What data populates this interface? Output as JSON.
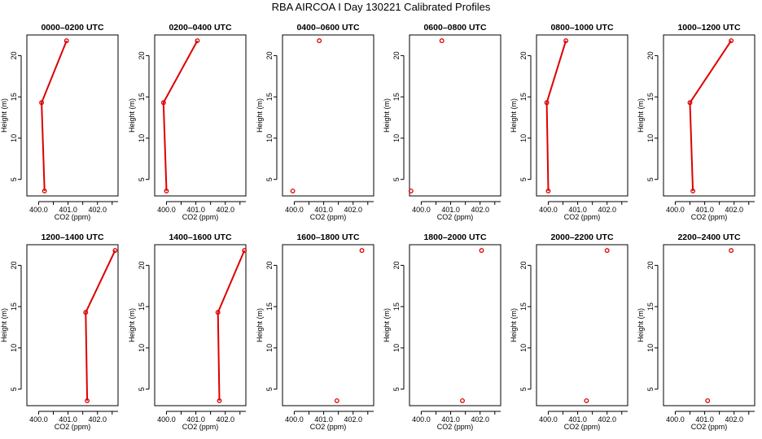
{
  "figure_title": "RBA AIRCOA I  Day 130221  Calibrated Profiles",
  "chart_data": [
    {
      "type": "line",
      "title": "0000–0200 UTC",
      "xlabel": "CO2 (ppm)",
      "ylabel": "Height (m)",
      "xlim": [
        399.6,
        402.7
      ],
      "ylim": [
        3,
        22.5
      ],
      "xticks": [
        400.0,
        401.0,
        402.0
      ],
      "xtick_labels": [
        "400.0",
        "401.0",
        "402.0"
      ],
      "yticks": [
        5,
        10,
        15,
        20
      ],
      "ytick_labels": [
        "5",
        "10",
        "15",
        "20"
      ],
      "x": [
        400.2,
        400.1,
        400.95
      ],
      "y": [
        3.6,
        14.3,
        21.8
      ],
      "connected": true
    },
    {
      "type": "line",
      "title": "0200–0400 UTC",
      "xlabel": "CO2 (ppm)",
      "ylabel": "Height (m)",
      "xlim": [
        399.6,
        402.7
      ],
      "ylim": [
        3,
        22.5
      ],
      "xticks": [
        400.0,
        401.0,
        402.0
      ],
      "xtick_labels": [
        "400.0",
        "401.0",
        "402.0"
      ],
      "yticks": [
        5,
        10,
        15,
        20
      ],
      "ytick_labels": [
        "5",
        "10",
        "15",
        "20"
      ],
      "x": [
        400.0,
        399.9,
        401.05
      ],
      "y": [
        3.6,
        14.3,
        21.8
      ],
      "connected": true
    },
    {
      "type": "scatter",
      "title": "0400–0600 UTC",
      "xlabel": "CO2 (ppm)",
      "ylabel": "Height (m)",
      "xlim": [
        399.6,
        402.7
      ],
      "ylim": [
        3,
        22.5
      ],
      "xticks": [
        400.0,
        401.0,
        402.0
      ],
      "xtick_labels": [
        "400.0",
        "401.0",
        "402.0"
      ],
      "yticks": [
        5,
        10,
        15,
        20
      ],
      "ytick_labels": [
        "5",
        "10",
        "15",
        "20"
      ],
      "x": [
        399.95,
        400.85
      ],
      "y": [
        3.6,
        21.8
      ],
      "connected": false
    },
    {
      "type": "scatter",
      "title": "0600–0800 UTC",
      "xlabel": "CO2 (ppm)",
      "ylabel": "Height (m)",
      "xlim": [
        399.6,
        402.7
      ],
      "ylim": [
        3,
        22.5
      ],
      "xticks": [
        400.0,
        401.0,
        402.0
      ],
      "xtick_labels": [
        "400.0",
        "401.0",
        "402.0"
      ],
      "yticks": [
        5,
        10,
        15,
        20
      ],
      "ytick_labels": [
        "5",
        "10",
        "15",
        "20"
      ],
      "x": [
        399.65,
        400.7
      ],
      "y": [
        3.6,
        21.8
      ],
      "connected": false
    },
    {
      "type": "line",
      "title": "0800–1000 UTC",
      "xlabel": "CO2 (ppm)",
      "ylabel": "Height (m)",
      "xlim": [
        399.6,
        402.7
      ],
      "ylim": [
        3,
        22.5
      ],
      "xticks": [
        400.0,
        401.0,
        402.0
      ],
      "xtick_labels": [
        "400.0",
        "401.0",
        "402.0"
      ],
      "yticks": [
        5,
        10,
        15,
        20
      ],
      "ytick_labels": [
        "5",
        "10",
        "15",
        "20"
      ],
      "x": [
        400.0,
        399.95,
        400.6
      ],
      "y": [
        3.6,
        14.3,
        21.8
      ],
      "connected": true
    },
    {
      "type": "line",
      "title": "1000–1200 UTC",
      "xlabel": "CO2 (ppm)",
      "ylabel": "Height (m)",
      "xlim": [
        399.6,
        402.7
      ],
      "ylim": [
        3,
        22.5
      ],
      "xticks": [
        400.0,
        401.0,
        402.0
      ],
      "xtick_labels": [
        "400.0",
        "401.0",
        "402.0"
      ],
      "yticks": [
        5,
        10,
        15,
        20
      ],
      "ytick_labels": [
        "5",
        "10",
        "15",
        "20"
      ],
      "x": [
        400.6,
        400.5,
        401.9
      ],
      "y": [
        3.6,
        14.3,
        21.8
      ],
      "connected": true
    },
    {
      "type": "line",
      "title": "1200–1400 UTC",
      "xlabel": "CO2 (ppm)",
      "ylabel": "Height (m)",
      "xlim": [
        399.6,
        402.7
      ],
      "ylim": [
        3,
        22.5
      ],
      "xticks": [
        400.0,
        401.0,
        402.0
      ],
      "xtick_labels": [
        "400.0",
        "401.0",
        "402.0"
      ],
      "yticks": [
        5,
        10,
        15,
        20
      ],
      "ytick_labels": [
        "5",
        "10",
        "15",
        "20"
      ],
      "x": [
        401.65,
        401.6,
        402.6
      ],
      "y": [
        3.6,
        14.3,
        21.8
      ],
      "connected": true
    },
    {
      "type": "line",
      "title": "1400–1600 UTC",
      "xlabel": "CO2 (ppm)",
      "ylabel": "Height (m)",
      "xlim": [
        399.6,
        402.7
      ],
      "ylim": [
        3,
        22.5
      ],
      "xticks": [
        400.0,
        401.0,
        402.0
      ],
      "xtick_labels": [
        "400.0",
        "401.0",
        "402.0"
      ],
      "yticks": [
        5,
        10,
        15,
        20
      ],
      "ytick_labels": [
        "5",
        "10",
        "15",
        "20"
      ],
      "x": [
        401.8,
        401.75,
        402.65
      ],
      "y": [
        3.6,
        14.3,
        21.8
      ],
      "connected": true
    },
    {
      "type": "scatter",
      "title": "1600–1800 UTC",
      "xlabel": "CO2 (ppm)",
      "ylabel": "Height (m)",
      "xlim": [
        399.6,
        402.7
      ],
      "ylim": [
        3,
        22.5
      ],
      "xticks": [
        400.0,
        401.0,
        402.0
      ],
      "xtick_labels": [
        "400.0",
        "401.0",
        "402.0"
      ],
      "yticks": [
        5,
        10,
        15,
        20
      ],
      "ytick_labels": [
        "5",
        "10",
        "15",
        "20"
      ],
      "x": [
        401.45,
        402.3
      ],
      "y": [
        3.6,
        21.8
      ],
      "connected": false
    },
    {
      "type": "scatter",
      "title": "1800–2000 UTC",
      "xlabel": "CO2 (ppm)",
      "ylabel": "Height (m)",
      "xlim": [
        399.6,
        402.7
      ],
      "ylim": [
        3,
        22.5
      ],
      "xticks": [
        400.0,
        401.0,
        402.0
      ],
      "xtick_labels": [
        "400.0",
        "401.0",
        "402.0"
      ],
      "yticks": [
        5,
        10,
        15,
        20
      ],
      "ytick_labels": [
        "5",
        "10",
        "15",
        "20"
      ],
      "x": [
        401.4,
        402.05
      ],
      "y": [
        3.6,
        21.8
      ],
      "connected": false
    },
    {
      "type": "scatter",
      "title": "2000–2200 UTC",
      "xlabel": "CO2 (ppm)",
      "ylabel": "Height (m)",
      "xlim": [
        399.6,
        402.7
      ],
      "ylim": [
        3,
        22.5
      ],
      "xticks": [
        400.0,
        401.0,
        402.0
      ],
      "xtick_labels": [
        "400.0",
        "401.0",
        "402.0"
      ],
      "yticks": [
        5,
        10,
        15,
        20
      ],
      "ytick_labels": [
        "5",
        "10",
        "15",
        "20"
      ],
      "x": [
        401.3,
        402.0
      ],
      "y": [
        3.6,
        21.8
      ],
      "connected": false
    },
    {
      "type": "scatter",
      "title": "2200–2400 UTC",
      "xlabel": "CO2 (ppm)",
      "ylabel": "Height (m)",
      "xlim": [
        399.6,
        402.7
      ],
      "ylim": [
        3,
        22.5
      ],
      "xticks": [
        400.0,
        401.0,
        402.0
      ],
      "xtick_labels": [
        "400.0",
        "401.0",
        "402.0"
      ],
      "yticks": [
        5,
        10,
        15,
        20
      ],
      "ytick_labels": [
        "5",
        "10",
        "15",
        "20"
      ],
      "x": [
        401.1,
        401.9
      ],
      "y": [
        3.6,
        21.8
      ],
      "connected": false
    }
  ],
  "colors": {
    "series": "#dd0000",
    "axis": "#000000",
    "background": "#ffffff"
  }
}
